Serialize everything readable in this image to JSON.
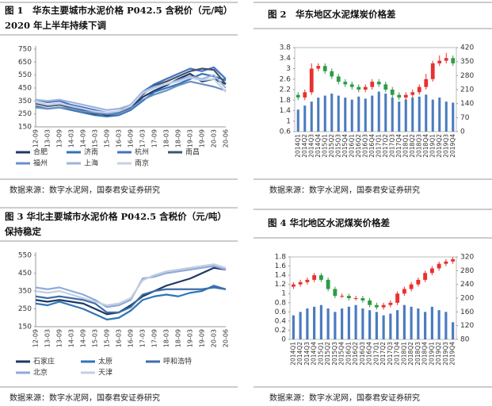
{
  "chart_data": [
    {
      "type": "line",
      "title": "图 1　华东主要城市水泥价格 P042.5 含税价（元/吨）2020 年上半年持续下调",
      "source": "数据来源：数字水泥网，国泰君安证券研究",
      "categories": [
        "12-09",
        "13-03",
        "13-09",
        "14-03",
        "14-09",
        "15-03",
        "15-09",
        "16-03",
        "16-09",
        "17-03",
        "17-09",
        "18-03",
        "18-09",
        "19-03",
        "19-09",
        "20-03",
        "20-06"
      ],
      "ylim": [
        150,
        750
      ],
      "yticks": [
        150,
        250,
        350,
        450,
        550,
        650,
        750
      ],
      "series": [
        {
          "name": "合肥",
          "color": "#1f3864",
          "values": [
            340,
            320,
            330,
            300,
            280,
            260,
            240,
            250,
            300,
            380,
            430,
            470,
            520,
            560,
            500,
            520,
            480
          ]
        },
        {
          "name": "济南",
          "color": "#2e75b6",
          "values": [
            310,
            290,
            300,
            280,
            260,
            240,
            230,
            240,
            280,
            350,
            420,
            450,
            480,
            520,
            560,
            540,
            510
          ]
        },
        {
          "name": "杭州",
          "color": "#4472c4",
          "values": [
            360,
            340,
            350,
            320,
            300,
            280,
            260,
            270,
            320,
            420,
            480,
            520,
            560,
            600,
            580,
            610,
            520
          ]
        },
        {
          "name": "南昌",
          "color": "#44546a",
          "values": [
            330,
            310,
            320,
            300,
            270,
            250,
            250,
            260,
            310,
            400,
            470,
            500,
            540,
            580,
            600,
            590,
            480
          ]
        },
        {
          "name": "福州",
          "color": "#6a8fc7",
          "values": [
            300,
            290,
            300,
            290,
            270,
            260,
            250,
            250,
            290,
            360,
            400,
            430,
            470,
            500,
            480,
            460,
            430
          ]
        },
        {
          "name": "上海",
          "color": "#9db3dc",
          "values": [
            360,
            350,
            360,
            340,
            320,
            300,
            280,
            290,
            320,
            420,
            460,
            480,
            510,
            540,
            520,
            550,
            450
          ]
        },
        {
          "name": "南京",
          "color": "#c5d0e6",
          "values": [
            340,
            320,
            330,
            310,
            290,
            270,
            260,
            270,
            310,
            410,
            450,
            480,
            500,
            530,
            510,
            520,
            420
          ]
        }
      ]
    },
    {
      "type": "candlestick",
      "title": "图 2　华东地区水泥煤炭价格差",
      "source": "数据来源：数字水泥网，国泰君安证券研究",
      "categories": [
        "2014Q1",
        "2014Q2",
        "2014Q3",
        "2014Q4",
        "2015Q1",
        "2015Q2",
        "2015Q3",
        "2015Q4",
        "2016Q1",
        "2016Q2",
        "2016Q3",
        "2016Q4",
        "2017Q1",
        "2017Q2",
        "2017Q3",
        "2017Q4",
        "2018Q1",
        "2018Q2",
        "2018Q3",
        "2018Q4",
        "2019Q1",
        "2019Q2",
        "2019Q3",
        "2019Q4"
      ],
      "ylim": [
        0.6,
        3.8
      ],
      "yticks": [
        0.6,
        1,
        1.4,
        1.8,
        2.2,
        2.6,
        3,
        3.4,
        3.8
      ],
      "y2lim": [
        0,
        420
      ],
      "y2ticks": [
        0,
        70,
        140,
        210,
        280,
        350,
        420
      ],
      "up_color": "#e8312f",
      "down_color": "#2e9b48",
      "open": [
        2.0,
        1.9,
        2.1,
        3.0,
        3.1,
        2.9,
        2.7,
        2.5,
        2.4,
        2.3,
        2.2,
        2.3,
        2.5,
        2.4,
        2.2,
        2.0,
        1.9,
        2.0,
        2.1,
        2.3,
        2.6,
        3.2,
        3.3,
        3.4
      ],
      "close": [
        1.9,
        2.1,
        3.0,
        3.1,
        2.9,
        2.7,
        2.5,
        2.4,
        2.3,
        2.2,
        2.3,
        2.5,
        2.4,
        2.2,
        2.0,
        1.9,
        2.0,
        2.1,
        2.3,
        2.6,
        3.2,
        3.3,
        3.4,
        3.2
      ],
      "high": [
        2.1,
        2.2,
        3.2,
        3.2,
        3.2,
        3.0,
        2.8,
        2.6,
        2.5,
        2.4,
        2.4,
        2.6,
        2.6,
        2.5,
        2.3,
        2.1,
        2.1,
        2.2,
        2.4,
        2.8,
        3.3,
        3.5,
        3.6,
        3.5
      ],
      "low": [
        1.8,
        1.8,
        2.0,
        2.9,
        2.8,
        2.6,
        2.4,
        2.3,
        2.2,
        2.1,
        2.1,
        2.2,
        2.3,
        2.1,
        1.9,
        1.8,
        1.8,
        1.9,
        2.0,
        2.2,
        2.5,
        3.1,
        3.2,
        3.1
      ],
      "bars": {
        "color": "#4a7bbf",
        "axis": "y2",
        "values": [
          110,
          130,
          150,
          170,
          180,
          190,
          180,
          170,
          160,
          175,
          165,
          180,
          200,
          190,
          170,
          150,
          160,
          170,
          175,
          185,
          160,
          170,
          150,
          145
        ]
      }
    },
    {
      "type": "line",
      "title": "图 3  华北主要城市水泥价格 P042.5 含税价（元/吨）保持稳定",
      "source": "数据来源：数字水泥网，国泰君安证券研究",
      "categories": [
        "12-09",
        "13-03",
        "13-09",
        "14-03",
        "14-09",
        "15-03",
        "15-09",
        "16-03",
        "16-09",
        "17-03",
        "17-09",
        "18-03",
        "18-09",
        "19-03",
        "19-09",
        "20-03",
        "20-06"
      ],
      "ylim": [
        150,
        550
      ],
      "yticks": [
        150,
        250,
        350,
        450,
        550
      ],
      "series": [
        {
          "name": "石家庄",
          "color": "#1f3864",
          "values": [
            300,
            290,
            300,
            290,
            280,
            250,
            220,
            230,
            270,
            320,
            350,
            380,
            400,
            420,
            450,
            480,
            470
          ]
        },
        {
          "name": "太原",
          "color": "#2e75b6",
          "values": [
            280,
            270,
            290,
            270,
            250,
            220,
            190,
            200,
            240,
            300,
            320,
            330,
            320,
            340,
            350,
            380,
            360
          ]
        },
        {
          "name": "呼和浩特",
          "color": "#3d6ea8",
          "values": [
            320,
            310,
            320,
            310,
            300,
            280,
            230,
            230,
            260,
            330,
            350,
            360,
            360,
            360,
            360,
            370,
            360
          ]
        },
        {
          "name": "北京",
          "color": "#8faadc",
          "values": [
            370,
            360,
            370,
            350,
            330,
            300,
            260,
            270,
            300,
            420,
            430,
            450,
            460,
            470,
            480,
            490,
            470
          ]
        },
        {
          "name": "天津",
          "color": "#c5cde0",
          "values": [
            350,
            340,
            350,
            330,
            310,
            290,
            270,
            280,
            310,
            410,
            440,
            460,
            470,
            480,
            490,
            500,
            480
          ]
        }
      ]
    },
    {
      "type": "candlestick",
      "title": "图 4  华北地区水泥煤炭价格差",
      "source": "数据来源：数字水泥网，国泰君安证券研究",
      "categories": [
        "2014Q1",
        "2014Q2",
        "2014Q3",
        "2014Q4",
        "2015Q1",
        "2015Q2",
        "2015Q3",
        "2015Q4",
        "2016Q1",
        "2016Q2",
        "2016Q3",
        "2016Q4",
        "2017Q1",
        "2017Q2",
        "2017Q3",
        "2017Q4",
        "2018Q1",
        "2018Q2",
        "2018Q3",
        "2018Q4",
        "2019Q1",
        "2019Q2",
        "2019Q3",
        "2019Q4"
      ],
      "ylim": [
        0,
        1.8
      ],
      "yticks": [
        0,
        0.2,
        0.4,
        0.6,
        0.8,
        1,
        1.2,
        1.4,
        1.6,
        1.8
      ],
      "y2lim": [
        80,
        320
      ],
      "y2ticks": [
        80,
        120,
        160,
        200,
        240,
        280,
        320
      ],
      "up_color": "#e8312f",
      "down_color": "#2e9b48",
      "open": [
        1.15,
        1.2,
        1.25,
        1.3,
        1.4,
        1.3,
        1.1,
        0.95,
        0.95,
        0.9,
        0.9,
        0.85,
        0.75,
        0.7,
        0.75,
        0.8,
        1.0,
        1.1,
        1.2,
        1.3,
        1.45,
        1.55,
        1.65,
        1.7
      ],
      "close": [
        1.2,
        1.25,
        1.3,
        1.4,
        1.3,
        1.1,
        0.95,
        0.95,
        0.9,
        0.9,
        0.85,
        0.75,
        0.7,
        0.75,
        0.8,
        1.0,
        1.1,
        1.2,
        1.3,
        1.45,
        1.55,
        1.65,
        1.7,
        1.75
      ],
      "high": [
        1.25,
        1.3,
        1.35,
        1.45,
        1.45,
        1.35,
        1.15,
        1.0,
        1.0,
        0.95,
        0.95,
        0.9,
        0.8,
        0.8,
        0.85,
        1.05,
        1.15,
        1.25,
        1.35,
        1.5,
        1.6,
        1.7,
        1.75,
        1.8
      ],
      "low": [
        1.1,
        1.15,
        1.2,
        1.25,
        1.25,
        1.05,
        0.9,
        0.9,
        0.85,
        0.85,
        0.8,
        0.7,
        0.65,
        0.65,
        0.7,
        0.75,
        0.95,
        1.05,
        1.15,
        1.25,
        1.4,
        1.5,
        1.6,
        1.65
      ],
      "bars": {
        "color": "#4a7bbf",
        "axis": "y2",
        "values": [
          150,
          160,
          170,
          175,
          180,
          170,
          160,
          170,
          175,
          180,
          170,
          165,
          160,
          150,
          155,
          165,
          180,
          175,
          170,
          160,
          175,
          165,
          160,
          130
        ]
      }
    }
  ]
}
